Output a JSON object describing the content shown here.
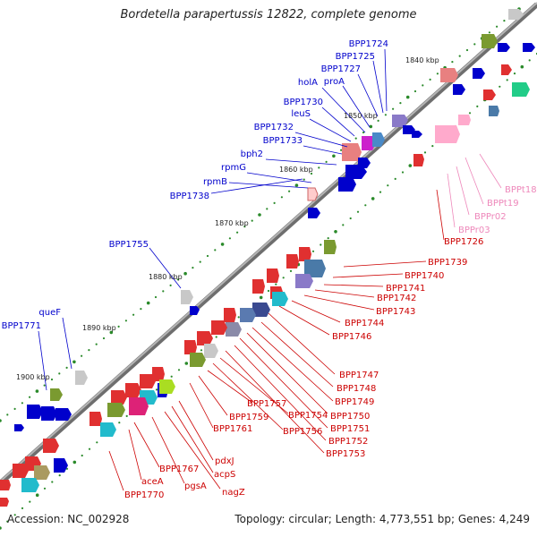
{
  "title": "Bordetella parapertussis 12822, complete genome",
  "footer": {
    "accession": "Accession: NC_002928",
    "topology": "Topology: circular; Length: 4,773,551 bp; Genes: 4,249"
  },
  "colors": {
    "backbone": "#8c8c8c",
    "label_blue": "#0000cc",
    "label_red": "#cc0000",
    "label_pink": "#ee88bb",
    "tick_dot": "#2a8a2a",
    "tick_text": "#222222"
  },
  "scale_labels": [
    "1840 kbp",
    "1850 kbp",
    "1860 kbp",
    "1870 kbp",
    "1880 kbp",
    "1890 kbp",
    "1900 kbp"
  ],
  "gene_labels": {
    "blue": [
      "BPP1724",
      "BPP1725",
      "BPP1727",
      "holA",
      "proA",
      "BPP1730",
      "leuS",
      "BPP1732",
      "BPP1733",
      "bph2",
      "rpmG",
      "rpmB",
      "BPP1738",
      "BPP1755",
      "queF",
      "BPP1771"
    ],
    "pink": [
      "BPPt18",
      "BPPt19",
      "BPPr02",
      "BPPr03"
    ],
    "red": [
      "BPP1726",
      "BPP1739",
      "BPP1740",
      "BPP1741",
      "BPP1742",
      "BPP1743",
      "BPP1744",
      "BPP1746",
      "BPP1747",
      "BPP1748",
      "BPP1749",
      "BPP1750",
      "BPP1751",
      "BPP1752",
      "BPP1753",
      "BPP1754",
      "BPP1756",
      "BPP1757",
      "BPP1759",
      "BPP1761",
      "pdxJ",
      "acpS",
      "nagZ",
      "pgsA",
      "BPP1767",
      "aceA",
      "BPP1770"
    ]
  }
}
